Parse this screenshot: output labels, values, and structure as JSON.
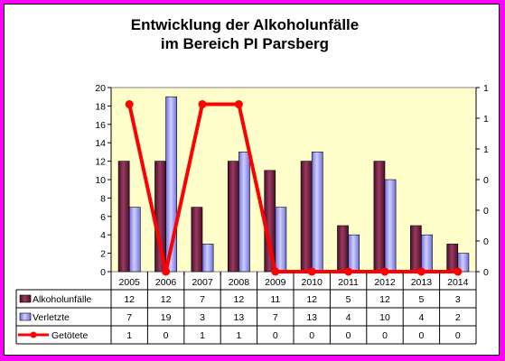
{
  "chart_data": {
    "type": "bar",
    "title_lines": [
      "Entwicklung der Alkoholunfälle",
      "im Bereich PI Parsberg"
    ],
    "categories": [
      "2005",
      "2006",
      "2007",
      "2008",
      "2009",
      "2010",
      "2011",
      "2012",
      "2013",
      "2014"
    ],
    "series": [
      {
        "name": "Alkoholunfälle",
        "type": "bar",
        "axis": "left",
        "values": [
          12,
          12,
          7,
          12,
          11,
          12,
          5,
          12,
          5,
          3
        ]
      },
      {
        "name": "Verletzte",
        "type": "bar",
        "axis": "left",
        "values": [
          7,
          19,
          3,
          13,
          7,
          13,
          4,
          10,
          4,
          2
        ]
      },
      {
        "name": "Getötete",
        "type": "line",
        "axis": "right",
        "values": [
          1,
          0,
          1,
          1,
          0,
          0,
          0,
          0,
          0,
          0
        ]
      }
    ],
    "ylim": [
      0,
      20
    ],
    "y_ticks": [
      0,
      2,
      4,
      6,
      8,
      10,
      12,
      14,
      16,
      18,
      20
    ],
    "y2lim": [
      0,
      1.1
    ],
    "y2_tick_labels": [
      "0",
      "0",
      "0",
      "0",
      "1",
      "1",
      "1"
    ],
    "xlabel": "",
    "ylabel": "",
    "grid": false,
    "legend": "data-table",
    "colors": {
      "alkoholunfaelle": "#7B2447",
      "verletzte": "#9999FF",
      "getoetete": "#FF0000",
      "plot_background": "#FFFFCC",
      "border": "#FF00FF"
    }
  }
}
